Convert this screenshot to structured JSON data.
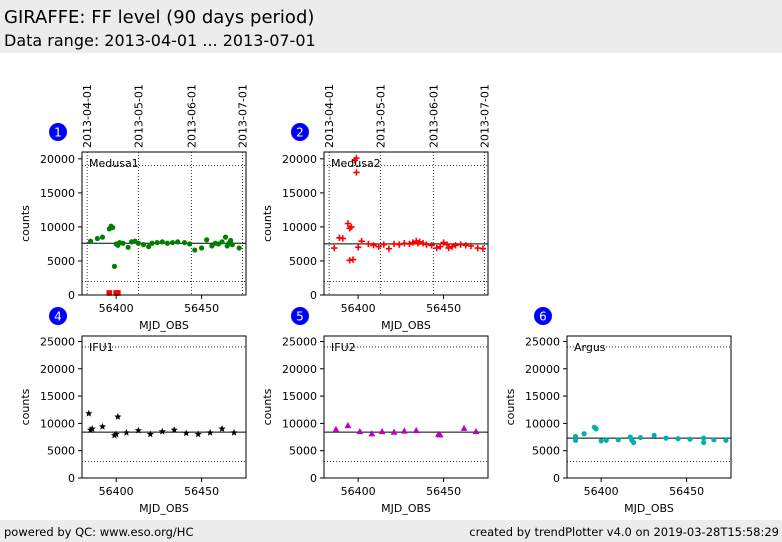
{
  "header": {
    "title": "GIRAFFE: FF level (90 days period)",
    "subtitle": "Data range: 2013-04-01 ... 2013-07-01"
  },
  "footer": {
    "left": "powered by QC: www.eso.org/HC",
    "right": "created by trendPlotter v4.0 on 2019-03-28T15:58:29"
  },
  "colors": {
    "header_bg": "#ececec",
    "badge": "#0000ff",
    "green": "#008000",
    "red": "#ff0000",
    "black": "#000000",
    "magenta": "#c000c0",
    "cyan": "#00b0b0"
  },
  "chart_data": [
    {
      "type": "scatter",
      "badge": "1",
      "panel_label": "Medusa1",
      "xlabel": "MJD_OBS",
      "ylabel": "counts",
      "xlim": [
        56380,
        56476
      ],
      "ylim": [
        0,
        21000
      ],
      "xticks": [
        56400,
        56450
      ],
      "yticks": [
        0,
        5000,
        10000,
        15000,
        20000
      ],
      "date_ticks": [
        {
          "mjd": 56383,
          "label": "2013-04-01"
        },
        {
          "mjd": 56413,
          "label": "2013-05-01"
        },
        {
          "mjd": 56444,
          "label": "2013-06-01"
        },
        {
          "mjd": 56474,
          "label": "2013-07-01"
        }
      ],
      "ref_line": 7600,
      "band": [
        2000,
        19000
      ],
      "series": [
        {
          "marker": "circle",
          "color": "#008000",
          "x": [
            56385,
            56389,
            56392,
            56396,
            56397,
            56398,
            56399,
            56400,
            56401,
            56402,
            56404,
            56407,
            56409,
            56411,
            56413,
            56416,
            56419,
            56421,
            56424,
            56427,
            56430,
            56433,
            56436,
            56440,
            56443,
            56446,
            56450,
            56453,
            56456,
            56458,
            56460,
            56462,
            56464,
            56465,
            56466,
            56467,
            56468,
            56472
          ],
          "y": [
            7900,
            8300,
            8500,
            9700,
            10100,
            9900,
            4200,
            7500,
            7300,
            7700,
            7600,
            7000,
            7800,
            7900,
            7600,
            7400,
            7100,
            7600,
            7700,
            7800,
            7600,
            7700,
            7800,
            7700,
            7500,
            6600,
            6900,
            8100,
            7200,
            7600,
            7500,
            7800,
            8500,
            7200,
            7600,
            8000,
            7400,
            6900
          ]
        },
        {
          "marker": "square",
          "color": "#ff0000",
          "x": [
            56396,
            56400,
            56401
          ],
          "y": [
            300,
            300,
            300
          ]
        }
      ]
    },
    {
      "type": "scatter",
      "badge": "2",
      "panel_label": "Medusa2",
      "xlabel": "MJD_OBS",
      "ylabel": "counts",
      "xlim": [
        56380,
        56476
      ],
      "ylim": [
        0,
        21000
      ],
      "xticks": [
        56400,
        56450
      ],
      "yticks": [
        0,
        5000,
        10000,
        15000,
        20000
      ],
      "date_ticks": [
        {
          "mjd": 56383,
          "label": "2013-04-01"
        },
        {
          "mjd": 56413,
          "label": "2013-05-01"
        },
        {
          "mjd": 56444,
          "label": "2013-06-01"
        },
        {
          "mjd": 56474,
          "label": "2013-07-01"
        }
      ],
      "ref_line": 7500,
      "band": [
        2000,
        19000
      ],
      "series": [
        {
          "marker": "plus",
          "color": "#ff0000",
          "x": [
            56386,
            56389,
            56391,
            56394,
            56395,
            56395,
            56396,
            56397,
            56398,
            56399,
            56399,
            56400,
            56402,
            56406,
            56409,
            56412,
            56415,
            56418,
            56421,
            56424,
            56427,
            56430,
            56432,
            56434,
            56435,
            56436,
            56438,
            56440,
            56443,
            56446,
            56448,
            56450,
            56452,
            56453,
            56455,
            56457,
            56460,
            56463,
            56466,
            56470,
            56473
          ],
          "y": [
            6900,
            8400,
            8300,
            10500,
            9800,
            5100,
            10000,
            5200,
            19800,
            20100,
            18000,
            7000,
            7900,
            7500,
            7300,
            7100,
            7400,
            6800,
            7500,
            7400,
            7600,
            7500,
            7700,
            7900,
            7600,
            7800,
            7600,
            7400,
            7300,
            6900,
            7100,
            7700,
            7400,
            6900,
            7100,
            7300,
            7400,
            7300,
            7200,
            6900,
            6800
          ]
        }
      ]
    },
    {
      "type": "scatter",
      "badge": "4",
      "panel_label": "IFU1",
      "xlabel": "MJD_OBS",
      "ylabel": "counts",
      "xlim": [
        56380,
        56476
      ],
      "ylim": [
        0,
        26000
      ],
      "xticks": [
        56400,
        56450
      ],
      "yticks": [
        0,
        5000,
        10000,
        15000,
        20000,
        25000
      ],
      "ref_line": 8400,
      "band": [
        3000,
        24000
      ],
      "series": [
        {
          "marker": "star",
          "color": "#000000",
          "x": [
            56384,
            56385,
            56386,
            56392,
            56399,
            56400,
            56401,
            56406,
            56413,
            56420,
            56427,
            56434,
            56441,
            56448,
            56455,
            56462,
            56469
          ],
          "y": [
            11800,
            8800,
            9000,
            9400,
            7800,
            8000,
            11200,
            8300,
            8700,
            8000,
            8500,
            8800,
            8200,
            8000,
            8300,
            9000,
            8300
          ]
        }
      ]
    },
    {
      "type": "scatter",
      "badge": "5",
      "panel_label": "IFU2",
      "xlabel": "MJD_OBS",
      "ylabel": "counts",
      "xlim": [
        56380,
        56476
      ],
      "ylim": [
        0,
        26000
      ],
      "xticks": [
        56400,
        56450
      ],
      "yticks": [
        0,
        5000,
        10000,
        15000,
        20000,
        25000
      ],
      "ref_line": 8400,
      "band": [
        3000,
        24000
      ],
      "series": [
        {
          "marker": "triangle",
          "color": "#c000c0",
          "x": [
            56387,
            56394,
            56401,
            56408,
            56414,
            56421,
            56427,
            56434,
            56447,
            56448,
            56462,
            56469
          ],
          "y": [
            8900,
            9600,
            8500,
            8100,
            8500,
            8400,
            8600,
            8700,
            8000,
            7900,
            9100,
            8500
          ]
        }
      ]
    },
    {
      "type": "scatter",
      "badge": "6",
      "panel_label": "Argus",
      "xlabel": "MJD_OBS",
      "ylabel": "counts",
      "xlim": [
        56380,
        56476
      ],
      "ylim": [
        0,
        26000
      ],
      "xticks": [
        56400,
        56450
      ],
      "yticks": [
        0,
        5000,
        10000,
        15000,
        20000,
        25000
      ],
      "ref_line": 7300,
      "band": [
        3000,
        24000
      ],
      "series": [
        {
          "marker": "circle",
          "color": "#00b0b0",
          "x": [
            56385,
            56385,
            56390,
            56396,
            56397,
            56400,
            56403,
            56410,
            56417,
            56418,
            56419,
            56423,
            56431,
            56438,
            56445,
            56452,
            56460,
            56460,
            56466,
            56473
          ],
          "y": [
            7600,
            6900,
            8100,
            9300,
            9000,
            6800,
            6900,
            7000,
            7500,
            6900,
            6500,
            7400,
            7800,
            7300,
            7200,
            7100,
            7300,
            6500,
            7000,
            6900
          ]
        }
      ]
    }
  ]
}
